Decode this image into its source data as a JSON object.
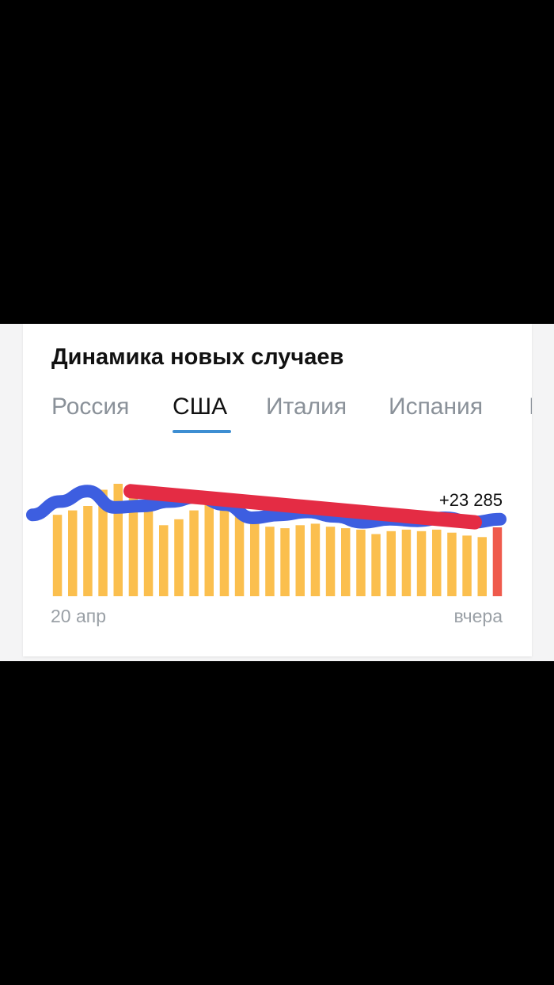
{
  "card": {
    "title": "Динамика новых случаев"
  },
  "tabs": [
    {
      "label": "Россия",
      "active": false
    },
    {
      "label": "США",
      "active": true
    },
    {
      "label": "Италия",
      "active": false
    },
    {
      "label": "Испания",
      "active": false
    }
  ],
  "colors": {
    "bar": "#fbbf4e",
    "bar_last": "#ef5a4c",
    "tab_underline": "#3d8ed2",
    "blue_stroke": "#3d5ee0",
    "red_stroke": "#e42c44"
  },
  "chart_data": {
    "type": "bar",
    "x_start_label": "20 апр",
    "x_end_label": "вчера",
    "last_value_label": "+23 285",
    "ylim": [
      0,
      38000
    ],
    "values": [
      27500,
      29000,
      30500,
      36000,
      38000,
      34000,
      30500,
      24000,
      26000,
      29000,
      31500,
      34000,
      32000,
      28000,
      23500,
      23000,
      24000,
      24500,
      23500,
      23000,
      22500,
      21000,
      22000,
      22500,
      22000,
      22500,
      21500,
      20500,
      20000,
      23285
    ],
    "annotations": {
      "blue_trace": [
        27500,
        32000,
        35500,
        30000,
        30500,
        32000,
        33500,
        31000,
        26500,
        27500,
        28500,
        27000,
        25000,
        26000,
        25500,
        26500,
        25000,
        26000
      ],
      "red_trend": [
        35500,
        25000
      ]
    }
  }
}
